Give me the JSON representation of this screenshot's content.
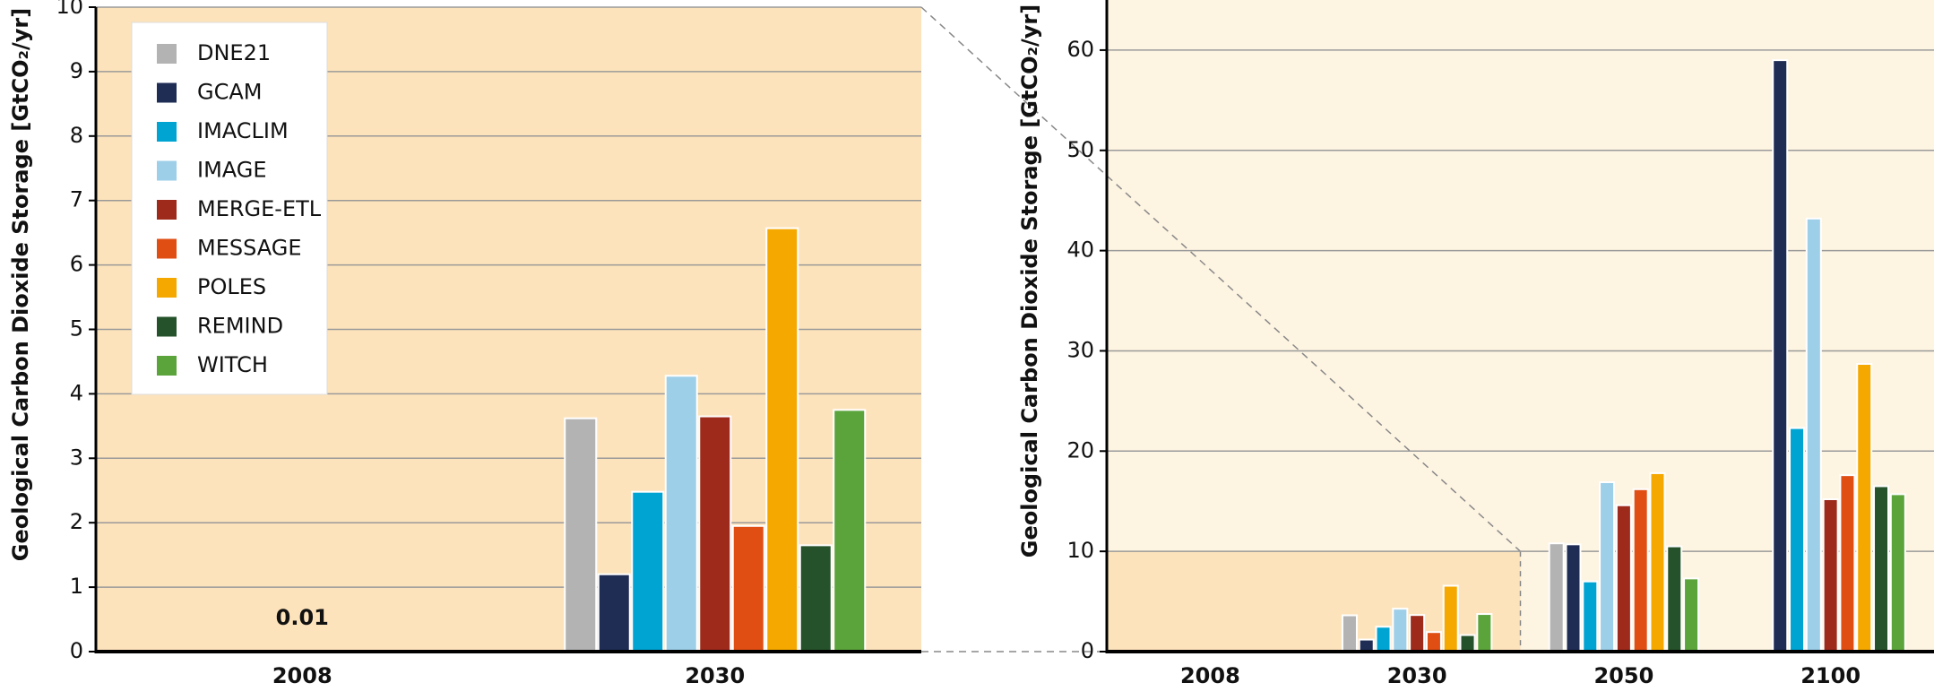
{
  "chart_data": [
    {
      "type": "bar",
      "y_label": "Geological Carbon Dioxide Storage [GtCO₂/yr]",
      "categories": [
        "2008",
        "2030"
      ],
      "ylim": [
        0,
        10
      ],
      "yticks": [
        0,
        1,
        2,
        3,
        4,
        5,
        6,
        7,
        8,
        9,
        10
      ],
      "grid": true,
      "legend": "upper left",
      "annotations": [
        {
          "text": "0.01",
          "category": "2008"
        }
      ],
      "series": [
        {
          "name": "DNE21",
          "color": "#b3b3b3",
          "values": [
            null,
            3.62
          ]
        },
        {
          "name": "GCAM",
          "color": "#1f2d55",
          "values": [
            null,
            1.2
          ]
        },
        {
          "name": "IMACLIM",
          "color": "#00a4d3",
          "values": [
            null,
            2.48
          ]
        },
        {
          "name": "IMAGE",
          "color": "#9dcfe8",
          "values": [
            null,
            4.28
          ]
        },
        {
          "name": "MERGE-ETL",
          "color": "#9e2a1c",
          "values": [
            null,
            3.65
          ]
        },
        {
          "name": "MESSAGE",
          "color": "#e04e14",
          "values": [
            null,
            1.95
          ]
        },
        {
          "name": "POLES",
          "color": "#f5a800",
          "values": [
            null,
            6.57
          ]
        },
        {
          "name": "REMIND",
          "color": "#25522a",
          "values": [
            null,
            1.65
          ]
        },
        {
          "name": "WITCH",
          "color": "#5ba33b",
          "values": [
            null,
            3.75
          ]
        }
      ]
    },
    {
      "type": "bar",
      "y_label": "Geological Carbon Dioxide Storage [GtCO₂/yr]",
      "categories": [
        "2008",
        "2030",
        "2050",
        "2100"
      ],
      "ylim": [
        0,
        65
      ],
      "yticks": [
        0,
        10,
        20,
        30,
        40,
        50,
        60
      ],
      "grid": true,
      "series": [
        {
          "color": "#b3b3b3",
          "values": [
            null,
            3.62,
            10.8,
            null
          ]
        },
        {
          "color": "#1f2d55",
          "values": [
            null,
            1.2,
            10.7,
            59
          ]
        },
        {
          "color": "#00a4d3",
          "values": [
            null,
            2.48,
            7.0,
            22.3
          ]
        },
        {
          "color": "#9dcfe8",
          "values": [
            null,
            4.28,
            16.9,
            43.2
          ]
        },
        {
          "color": "#9e2a1c",
          "values": [
            null,
            3.65,
            14.6,
            15.2
          ]
        },
        {
          "color": "#e04e14",
          "values": [
            null,
            1.95,
            16.2,
            17.6
          ]
        },
        {
          "color": "#f5a800",
          "values": [
            null,
            6.57,
            17.8,
            28.7
          ]
        },
        {
          "color": "#25522a",
          "values": [
            null,
            1.65,
            10.5,
            16.5
          ]
        },
        {
          "color": "#5ba33b",
          "values": [
            null,
            3.75,
            7.3,
            15.7
          ]
        }
      ]
    }
  ]
}
